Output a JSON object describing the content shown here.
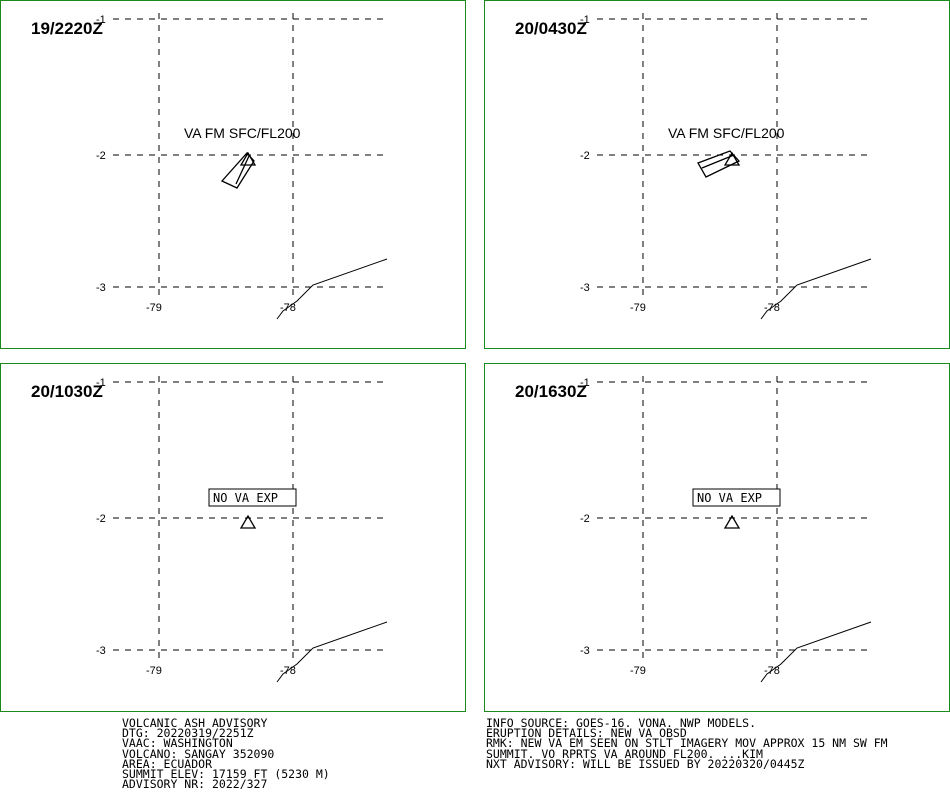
{
  "panels": [
    {
      "time": "19/2220Z",
      "label": "VA FM SFC/FL200",
      "label_boxed": false,
      "ash_cloud": "sw1"
    },
    {
      "time": "20/0430Z",
      "label": "VA FM SFC/FL200",
      "label_boxed": false,
      "ash_cloud": "sw2"
    },
    {
      "time": "20/1030Z",
      "label": "NO VA EXP",
      "label_boxed": true,
      "ash_cloud": null
    },
    {
      "time": "20/1630Z",
      "label": "NO VA EXP",
      "label_boxed": true,
      "ash_cloud": null
    }
  ],
  "grid": {
    "lat_labels": [
      "-1",
      "-2",
      "-3"
    ],
    "lon_labels": [
      "-79",
      "-78"
    ]
  },
  "advisory_left": [
    "VOLCANIC ASH ADVISORY",
    "DTG: 20220319/2251Z",
    "VAAC: WASHINGTON",
    "VOLCANO: SANGAY 352090",
    "AREA: ECUADOR",
    "SUMMIT ELEV: 17159 FT (5230 M)",
    "ADVISORY NR: 2022/327"
  ],
  "advisory_right": [
    "INFO SOURCE: GOES-16. VONA. NWP MODELS.",
    "ERUPTION DETAILS: NEW VA OBSD",
    "RMK: NEW VA EM SEEN ON STLT IMAGERY MOV APPROX 15 NM SW FM",
    "SUMMIT. VO RPRTS VA AROUND FL200. ...KIM",
    "NXT ADVISORY: WILL BE ISSUED BY 20220320/0445Z"
  ],
  "colors": {
    "frame": "#1a8a1a",
    "ink": "#000000"
  }
}
